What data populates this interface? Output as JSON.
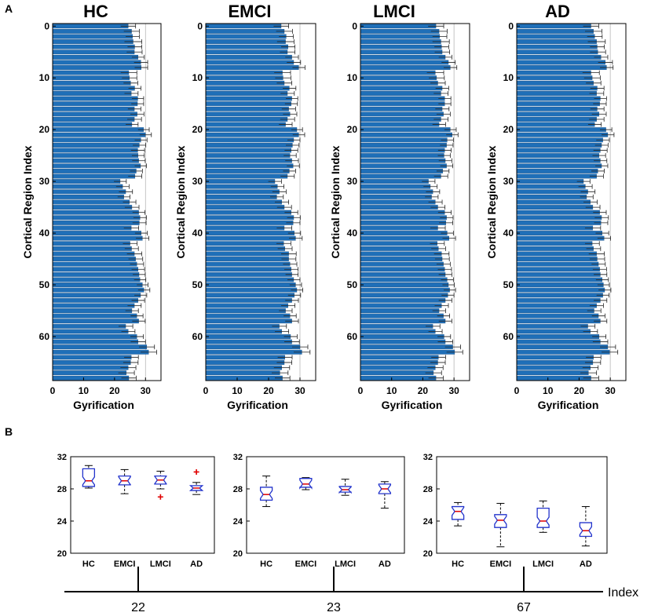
{
  "panel_a_label": "A",
  "panel_b_label": "B",
  "chart_data": [
    {
      "type": "bar",
      "orientation": "horizontal",
      "title": "HC",
      "xlabel": "Gyrification",
      "ylabel": "Cortical Region Index",
      "xlim": [
        0,
        35
      ],
      "xticks": [
        0,
        10,
        20,
        30
      ],
      "ylim": [
        -0.5,
        68.5
      ],
      "yticks": [
        0,
        10,
        20,
        30,
        40,
        50,
        60
      ],
      "reference_line_x": 30,
      "categories_start": 0,
      "values": [
        24.4,
        25.5,
        25.8,
        26.0,
        26.5,
        26.4,
        27.6,
        28.5,
        28.6,
        24.6,
        24.8,
        25.2,
        26.5,
        25.4,
        27.5,
        27.4,
        26.4,
        27.3,
        26.4,
        25.6,
        29.4,
        30.0,
        28.5,
        28.0,
        27.5,
        27.6,
        27.8,
        28.4,
        27.0,
        26.6,
        21.8,
        22.6,
        23.6,
        23.0,
        24.8,
        25.6,
        27.8,
        28.2,
        28.0,
        25.4,
        28.6,
        29.0,
        25.0,
        25.5,
        26.4,
        26.8,
        27.2,
        27.6,
        27.9,
        28.2,
        29.0,
        29.5,
        28.4,
        27.6,
        26.4,
        25.6,
        27.2,
        27.8,
        23.6,
        24.4,
        27.2,
        27.6,
        30.4,
        31.0,
        25.4,
        25.2,
        24.4,
        23.8,
        24.6
      ],
      "errors": [
        2.4,
        2.5,
        2.2,
        2.8,
        2.3,
        2.5,
        2.0,
        2.2,
        2.1,
        2.6,
        2.4,
        2.3,
        2.0,
        2.2,
        1.9,
        2.0,
        2.1,
        2.2,
        2.3,
        2.0,
        1.8,
        1.9,
        2.0,
        2.1,
        2.2,
        2.0,
        2.1,
        1.9,
        2.0,
        2.2,
        2.0,
        2.1,
        2.2,
        2.0,
        2.1,
        2.3,
        2.0,
        2.1,
        2.2,
        2.4,
        2.0,
        2.1,
        2.3,
        2.2,
        2.4,
        2.3,
        2.2,
        2.1,
        2.0,
        1.9,
        1.8,
        1.9,
        2.0,
        2.1,
        2.2,
        2.1,
        2.0,
        2.1,
        2.3,
        2.2,
        2.1,
        2.4,
        2.5,
        2.6,
        2.3,
        2.4,
        2.5,
        2.6,
        2.4
      ]
    },
    {
      "type": "bar",
      "orientation": "horizontal",
      "title": "EMCI",
      "xlabel": "Gyrification",
      "ylabel": "Cortical Region Index",
      "xlim": [
        0,
        35
      ],
      "xticks": [
        0,
        10,
        20,
        30
      ],
      "ylim": [
        -0.5,
        68.5
      ],
      "yticks": [
        0,
        10,
        20,
        30,
        40,
        50,
        60
      ],
      "reference_line_x": 30,
      "categories_start": 0,
      "values": [
        24.0,
        25.0,
        25.6,
        25.4,
        26.2,
        26.0,
        27.4,
        28.0,
        29.6,
        24.4,
        24.6,
        25.0,
        26.6,
        26.0,
        27.4,
        27.2,
        26.4,
        26.8,
        26.0,
        25.4,
        29.0,
        29.6,
        28.0,
        27.6,
        27.2,
        26.8,
        27.4,
        27.8,
        26.6,
        26.0,
        22.0,
        22.8,
        23.4,
        22.6,
        24.2,
        25.0,
        27.2,
        28.0,
        27.8,
        25.0,
        28.2,
        28.6,
        24.8,
        25.2,
        26.4,
        26.4,
        26.8,
        27.2,
        27.4,
        28.0,
        28.6,
        29.0,
        28.2,
        27.4,
        26.2,
        25.4,
        26.8,
        27.4,
        23.4,
        24.2,
        27.0,
        27.4,
        30.0,
        30.6,
        25.2,
        25.0,
        24.2,
        23.6,
        24.4
      ],
      "errors": [
        2.4,
        2.6,
        2.3,
        2.7,
        2.2,
        2.4,
        2.1,
        2.2,
        2.0,
        2.6,
        2.5,
        2.4,
        2.1,
        2.2,
        1.9,
        2.0,
        2.2,
        2.2,
        2.3,
        2.1,
        1.8,
        1.9,
        2.0,
        2.1,
        2.1,
        2.0,
        2.1,
        2.0,
        2.0,
        2.2,
        2.1,
        2.1,
        2.2,
        2.1,
        2.2,
        2.3,
        2.1,
        2.1,
        2.2,
        2.4,
        2.0,
        2.1,
        2.3,
        2.3,
        2.4,
        2.3,
        2.2,
        2.2,
        2.0,
        2.0,
        1.9,
        1.9,
        2.0,
        2.1,
        2.2,
        2.1,
        2.0,
        2.1,
        2.3,
        2.2,
        2.1,
        2.4,
        2.5,
        2.6,
        2.3,
        2.4,
        2.5,
        2.6,
        2.4
      ]
    },
    {
      "type": "bar",
      "orientation": "horizontal",
      "title": "LMCI",
      "xlabel": "Gyrification",
      "ylabel": "Cortical Region Index",
      "xlim": [
        0,
        35
      ],
      "xticks": [
        0,
        10,
        20,
        30
      ],
      "ylim": [
        -0.5,
        68.5
      ],
      "yticks": [
        0,
        10,
        20,
        30,
        40,
        50,
        60
      ],
      "reference_line_x": 30,
      "categories_start": 0,
      "values": [
        24.2,
        25.2,
        25.4,
        25.8,
        26.0,
        26.2,
        27.2,
        28.2,
        28.8,
        24.0,
        24.4,
        24.8,
        26.2,
        25.8,
        27.0,
        27.0,
        26.2,
        26.6,
        25.8,
        25.2,
        28.8,
        29.4,
        27.8,
        27.6,
        27.0,
        26.8,
        27.2,
        27.6,
        26.4,
        25.8,
        21.8,
        22.4,
        23.2,
        22.8,
        24.0,
        24.8,
        27.0,
        27.6,
        27.4,
        24.8,
        27.8,
        28.4,
        24.6,
        25.0,
        26.0,
        26.2,
        26.6,
        27.0,
        27.2,
        27.8,
        28.2,
        28.6,
        28.0,
        27.2,
        26.0,
        25.2,
        26.6,
        27.2,
        23.2,
        24.0,
        26.8,
        27.2,
        29.6,
        30.2,
        25.0,
        24.8,
        24.0,
        23.4,
        24.2
      ],
      "errors": [
        2.5,
        2.6,
        2.3,
        2.7,
        2.3,
        2.4,
        2.1,
        2.2,
        2.1,
        2.7,
        2.5,
        2.4,
        2.1,
        2.3,
        2.0,
        2.0,
        2.2,
        2.2,
        2.3,
        2.1,
        1.9,
        1.9,
        2.0,
        2.1,
        2.1,
        2.0,
        2.1,
        2.0,
        2.0,
        2.2,
        2.1,
        2.2,
        2.2,
        2.1,
        2.2,
        2.3,
        2.1,
        2.1,
        2.2,
        2.4,
        2.0,
        2.1,
        2.3,
        2.3,
        2.4,
        2.3,
        2.2,
        2.2,
        2.1,
        2.0,
        1.9,
        1.9,
        2.0,
        2.1,
        2.2,
        2.1,
        2.0,
        2.1,
        2.3,
        2.2,
        2.1,
        2.4,
        2.5,
        2.6,
        2.3,
        2.4,
        2.5,
        2.6,
        2.4
      ]
    },
    {
      "type": "bar",
      "orientation": "horizontal",
      "title": "AD",
      "xlabel": "Gyrification",
      "ylabel": "Cortical Region Index",
      "xlim": [
        0,
        35
      ],
      "xticks": [
        0,
        10,
        20,
        30
      ],
      "ylim": [
        -0.5,
        68.5
      ],
      "yticks": [
        0,
        10,
        20,
        30,
        40,
        50,
        60
      ],
      "reference_line_x": 30,
      "categories_start": 0,
      "values": [
        23.8,
        24.6,
        25.0,
        25.6,
        25.8,
        26.0,
        27.0,
        28.4,
        28.8,
        23.8,
        24.2,
        24.6,
        25.8,
        25.6,
        26.8,
        26.6,
        25.8,
        26.4,
        25.6,
        25.0,
        28.6,
        29.2,
        27.6,
        27.2,
        26.8,
        26.4,
        26.8,
        27.2,
        26.0,
        25.6,
        21.4,
        22.0,
        22.8,
        22.4,
        23.6,
        24.4,
        26.6,
        27.2,
        27.0,
        24.4,
        27.4,
        28.0,
        24.2,
        24.6,
        25.6,
        25.8,
        26.2,
        26.6,
        26.8,
        27.4,
        27.8,
        28.2,
        27.6,
        26.8,
        25.6,
        24.8,
        26.2,
        26.8,
        22.8,
        23.6,
        26.4,
        26.8,
        29.2,
        29.8,
        24.6,
        24.4,
        23.6,
        23.0,
        23.8
      ],
      "errors": [
        2.5,
        2.7,
        2.4,
        2.8,
        2.3,
        2.5,
        2.2,
        2.3,
        2.1,
        2.7,
        2.6,
        2.4,
        2.2,
        2.3,
        2.0,
        2.1,
        2.2,
        2.3,
        2.4,
        2.1,
        1.9,
        2.0,
        2.1,
        2.1,
        2.2,
        2.1,
        2.1,
        2.0,
        2.1,
        2.2,
        2.1,
        2.2,
        2.3,
        2.1,
        2.2,
        2.3,
        2.1,
        2.2,
        2.2,
        2.5,
        2.1,
        2.1,
        2.3,
        2.3,
        2.5,
        2.4,
        2.2,
        2.2,
        2.1,
        2.0,
        1.9,
        2.0,
        2.0,
        2.1,
        2.2,
        2.2,
        2.1,
        2.1,
        2.3,
        2.3,
        2.2,
        2.4,
        2.5,
        2.6,
        2.4,
        2.5,
        2.5,
        2.6,
        2.5
      ]
    },
    {
      "type": "boxplot",
      "index": "22",
      "categories": [
        "HC",
        "EMCI",
        "LMCI",
        "AD"
      ],
      "ylim": [
        20,
        32
      ],
      "yticks": [
        20,
        24,
        28,
        32
      ],
      "boxes": [
        {
          "whisker_low": 28.1,
          "q1": 28.3,
          "median": 29.0,
          "q3": 30.5,
          "whisker_high": 30.9,
          "outliers": []
        },
        {
          "whisker_low": 27.4,
          "q1": 28.5,
          "median": 29.0,
          "q3": 29.6,
          "whisker_high": 30.4,
          "outliers": []
        },
        {
          "whisker_low": 28.0,
          "q1": 28.6,
          "median": 29.1,
          "q3": 29.6,
          "whisker_high": 30.2,
          "outliers": [
            27.0
          ]
        },
        {
          "whisker_low": 27.3,
          "q1": 27.8,
          "median": 28.1,
          "q3": 28.4,
          "whisker_high": 28.8,
          "outliers": [
            30.1
          ]
        }
      ]
    },
    {
      "type": "boxplot",
      "index": "23",
      "categories": [
        "HC",
        "EMCI",
        "LMCI",
        "AD"
      ],
      "ylim": [
        20,
        32
      ],
      "yticks": [
        20,
        24,
        28,
        32
      ],
      "boxes": [
        {
          "whisker_low": 25.8,
          "q1": 26.6,
          "median": 27.3,
          "q3": 28.2,
          "whisker_high": 29.6,
          "outliers": []
        },
        {
          "whisker_low": 27.9,
          "q1": 28.2,
          "median": 28.6,
          "q3": 29.3,
          "whisker_high": 29.4,
          "outliers": []
        },
        {
          "whisker_low": 27.2,
          "q1": 27.6,
          "median": 27.9,
          "q3": 28.3,
          "whisker_high": 29.2,
          "outliers": []
        },
        {
          "whisker_low": 25.6,
          "q1": 27.4,
          "median": 28.0,
          "q3": 28.6,
          "whisker_high": 28.9,
          "outliers": []
        }
      ]
    },
    {
      "type": "boxplot",
      "index": "67",
      "categories": [
        "HC",
        "EMCI",
        "LMCI",
        "AD"
      ],
      "ylim": [
        20,
        32
      ],
      "yticks": [
        20,
        24,
        28,
        32
      ],
      "boxes": [
        {
          "whisker_low": 23.4,
          "q1": 24.2,
          "median": 25.2,
          "q3": 25.8,
          "whisker_high": 26.3,
          "outliers": []
        },
        {
          "whisker_low": 20.8,
          "q1": 23.2,
          "median": 24.1,
          "q3": 24.8,
          "whisker_high": 26.2,
          "outliers": []
        },
        {
          "whisker_low": 22.6,
          "q1": 23.2,
          "median": 24.0,
          "q3": 25.6,
          "whisker_high": 26.5,
          "outliers": []
        },
        {
          "whisker_low": 20.9,
          "q1": 22.1,
          "median": 22.8,
          "q3": 23.8,
          "whisker_high": 25.8,
          "outliers": []
        }
      ]
    }
  ],
  "index_axis": {
    "label": "Index",
    "ticks": [
      "22",
      "23",
      "67"
    ]
  },
  "colors": {
    "bar_fill": "#1f6fb8",
    "bar_edge": "#1a4f84",
    "box_edge": "#2233cc",
    "median": "#e00000",
    "outlier": "#e00000"
  }
}
